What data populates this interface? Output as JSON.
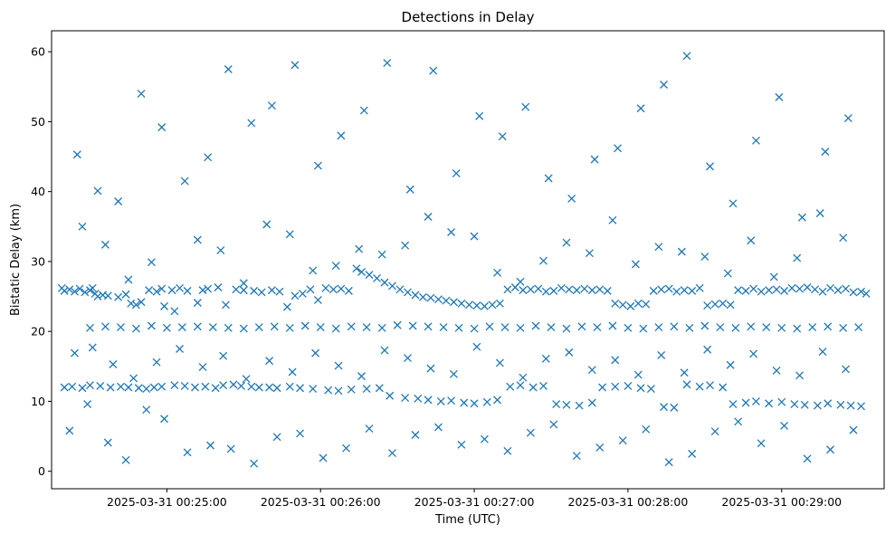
{
  "chart_data": {
    "type": "scatter",
    "title": "Detections in Delay",
    "xlabel": "Time (UTC)",
    "ylabel": "Bistatic Delay (km)",
    "marker": "x",
    "color": "#1f77b4",
    "grid": false,
    "x_ticks": [
      "2025-03-31 00:25:00",
      "2025-03-31 00:26:00",
      "2025-03-31 00:27:00",
      "2025-03-31 00:28:00",
      "2025-03-31 00:29:00"
    ],
    "y_ticks": [
      0,
      10,
      20,
      30,
      40,
      50,
      60
    ],
    "xlim": [
      "2025-03-31 00:24:15",
      "2025-03-31 00:29:40"
    ],
    "ylim": [
      -2.5,
      63
    ],
    "series": [
      {
        "x": [
          "00:24:19",
          "00:24:20",
          "00:24:22",
          "00:24:24",
          "00:24:26",
          "00:24:28",
          "00:24:30",
          "00:24:31",
          "00:24:32",
          "00:24:33",
          "00:24:35",
          "00:24:37",
          "00:24:41",
          "00:24:44",
          "00:24:46",
          "00:24:48",
          "00:24:50",
          "00:24:53",
          "00:24:56",
          "00:24:58",
          "00:24:59",
          "00:25:02",
          "00:25:05",
          "00:25:08",
          "00:25:12",
          "00:25:14",
          "00:25:16",
          "00:25:20",
          "00:25:23",
          "00:25:27",
          "00:25:30",
          "00:25:34",
          "00:25:37",
          "00:25:41",
          "00:25:44",
          "00:25:47",
          "00:25:50",
          "00:25:53",
          "00:25:56",
          "00:25:59",
          "00:26:02",
          "00:26:05",
          "00:26:08",
          "00:26:11",
          "00:26:14",
          "00:26:16",
          "00:26:19",
          "00:26:22",
          "00:26:25",
          "00:26:28",
          "00:26:31",
          "00:26:34",
          "00:26:37",
          "00:26:40",
          "00:26:43",
          "00:26:46",
          "00:26:49",
          "00:26:52",
          "00:26:55",
          "00:26:58",
          "00:27:01",
          "00:27:04",
          "00:27:07",
          "00:27:10",
          "00:27:13",
          "00:27:16",
          "00:27:19",
          "00:27:22",
          "00:27:25",
          "00:27:28",
          "00:27:31",
          "00:27:34",
          "00:27:37",
          "00:27:40",
          "00:27:43",
          "00:27:46",
          "00:27:49",
          "00:27:52",
          "00:27:55",
          "00:27:58",
          "00:28:01",
          "00:28:04",
          "00:28:07",
          "00:28:10",
          "00:28:13",
          "00:28:16",
          "00:28:19",
          "00:28:22",
          "00:28:25",
          "00:28:28",
          "00:28:31",
          "00:28:34",
          "00:28:37",
          "00:28:40",
          "00:28:43",
          "00:28:46",
          "00:28:49",
          "00:28:52",
          "00:28:55",
          "00:28:58",
          "00:29:01",
          "00:29:04",
          "00:29:07",
          "00:29:10",
          "00:29:13",
          "00:29:16",
          "00:29:19",
          "00:29:22",
          "00:29:25",
          "00:29:28",
          "00:29:31",
          "00:29:33",
          "00:24:20",
          "00:24:23",
          "00:24:27",
          "00:24:30",
          "00:24:34",
          "00:24:38",
          "00:24:42",
          "00:24:45",
          "00:24:49",
          "00:24:52",
          "00:24:55",
          "00:24:58",
          "00:25:03",
          "00:25:07",
          "00:25:11",
          "00:25:15",
          "00:25:19",
          "00:25:22",
          "00:25:26",
          "00:25:29",
          "00:25:33",
          "00:25:36",
          "00:25:40",
          "00:25:43",
          "00:25:48",
          "00:25:52",
          "00:25:57",
          "00:26:03",
          "00:26:07",
          "00:26:12",
          "00:26:18",
          "00:26:23",
          "00:26:27",
          "00:26:33",
          "00:26:38",
          "00:26:42",
          "00:26:47",
          "00:26:51",
          "00:26:56",
          "00:27:00",
          "00:27:05",
          "00:27:09",
          "00:27:14",
          "00:27:18",
          "00:27:23",
          "00:27:27",
          "00:27:32",
          "00:27:36",
          "00:27:41",
          "00:27:46",
          "00:27:50",
          "00:27:55",
          "00:28:00",
          "00:28:05",
          "00:28:09",
          "00:28:14",
          "00:28:18",
          "00:28:23",
          "00:28:28",
          "00:28:32",
          "00:28:37",
          "00:28:41",
          "00:28:46",
          "00:28:50",
          "00:28:55",
          "00:29:00",
          "00:29:05",
          "00:29:09",
          "00:29:14",
          "00:29:18",
          "00:29:23",
          "00:29:27",
          "00:29:31",
          "00:24:30",
          "00:24:36",
          "00:24:42",
          "00:24:48",
          "00:24:54",
          "00:25:00",
          "00:25:06",
          "00:25:12",
          "00:25:18",
          "00:25:24",
          "00:25:30",
          "00:25:36",
          "00:25:42",
          "00:25:48",
          "00:25:54",
          "00:26:00",
          "00:26:06",
          "00:26:12",
          "00:26:18",
          "00:26:24",
          "00:26:30",
          "00:26:36",
          "00:26:42",
          "00:26:48",
          "00:26:54",
          "00:27:00",
          "00:27:06",
          "00:27:12",
          "00:27:18",
          "00:27:24",
          "00:27:30",
          "00:27:36",
          "00:27:42",
          "00:27:48",
          "00:27:54",
          "00:28:00",
          "00:28:06",
          "00:28:12",
          "00:28:18",
          "00:28:24",
          "00:28:30",
          "00:28:36",
          "00:28:42",
          "00:28:48",
          "00:28:54",
          "00:29:00",
          "00:29:06",
          "00:29:12",
          "00:29:18",
          "00:29:24",
          "00:29:30",
          "00:24:25",
          "00:24:33",
          "00:24:41",
          "00:24:50",
          "00:24:58",
          "00:25:07",
          "00:25:16",
          "00:25:24",
          "00:25:33",
          "00:25:41",
          "00:25:50",
          "00:25:59",
          "00:26:08",
          "00:26:17",
          "00:26:26",
          "00:26:35",
          "00:26:44",
          "00:26:53",
          "00:27:02",
          "00:27:11",
          "00:27:20",
          "00:27:29",
          "00:27:38",
          "00:27:47",
          "00:27:56",
          "00:28:05",
          "00:28:14",
          "00:28:23",
          "00:28:32",
          "00:28:41",
          "00:28:50",
          "00:28:59",
          "00:29:08",
          "00:29:17",
          "00:29:26",
          "00:24:27",
          "00:24:36",
          "00:24:45",
          "00:24:54",
          "00:25:03",
          "00:25:12",
          "00:25:21",
          "00:25:30",
          "00:25:39",
          "00:25:48",
          "00:25:57",
          "00:26:06",
          "00:26:15",
          "00:26:24",
          "00:26:33",
          "00:26:42",
          "00:26:51",
          "00:27:00",
          "00:27:09",
          "00:27:18",
          "00:27:27",
          "00:27:36",
          "00:27:45",
          "00:27:54",
          "00:28:03",
          "00:28:12",
          "00:28:21",
          "00:28:30",
          "00:28:39",
          "00:28:48",
          "00:28:57",
          "00:29:06",
          "00:29:15",
          "00:29:24",
          "00:24:22",
          "00:24:29",
          "00:24:37",
          "00:24:44",
          "00:24:52",
          "00:24:59",
          "00:25:08",
          "00:25:17",
          "00:25:25",
          "00:25:34",
          "00:25:43",
          "00:25:52",
          "00:26:01",
          "00:26:10",
          "00:26:19",
          "00:26:28",
          "00:26:37",
          "00:26:46",
          "00:26:55",
          "00:27:04",
          "00:27:13",
          "00:27:22",
          "00:27:31",
          "00:27:40",
          "00:27:49",
          "00:27:58",
          "00:28:07",
          "00:28:16",
          "00:28:25",
          "00:28:34",
          "00:28:43",
          "00:28:52",
          "00:29:01",
          "00:29:10",
          "00:29:19",
          "00:29:28",
          "00:24:24",
          "00:24:31",
          "00:24:39",
          "00:24:47",
          "00:24:56",
          "00:25:05",
          "00:25:14",
          "00:25:22",
          "00:25:31",
          "00:25:40",
          "00:25:49",
          "00:25:58",
          "00:26:07",
          "00:26:16",
          "00:26:25",
          "00:26:34",
          "00:26:43",
          "00:26:52",
          "00:27:01",
          "00:27:10",
          "00:27:19",
          "00:27:28",
          "00:27:37",
          "00:27:46",
          "00:27:55",
          "00:28:04",
          "00:28:13",
          "00:28:22",
          "00:28:31",
          "00:28:40",
          "00:28:49",
          "00:28:58",
          "00:29:07",
          "00:29:16",
          "00:29:25"
        ],
        "y": [
          26.2,
          25.8,
          26.0,
          25.7,
          26.1,
          25.6,
          25.9,
          26.2,
          25.4,
          25.0,
          25.2,
          25.1,
          24.9,
          25.3,
          24.0,
          23.8,
          24.2,
          25.9,
          25.7,
          26.1,
          23.6,
          25.9,
          26.2,
          25.8,
          24.1,
          25.9,
          26.1,
          26.3,
          23.8,
          26.0,
          25.9,
          25.8,
          25.6,
          25.9,
          25.7,
          23.5,
          25.1,
          25.4,
          26.0,
          24.5,
          26.2,
          26.0,
          26.1,
          25.8,
          29.0,
          28.5,
          28.1,
          27.6,
          27.0,
          26.5,
          26.0,
          25.6,
          25.2,
          24.9,
          24.8,
          24.6,
          24.4,
          24.2,
          24.0,
          23.8,
          23.7,
          23.6,
          23.8,
          24.0,
          26.0,
          26.3,
          25.9,
          26.0,
          26.1,
          25.7,
          25.8,
          26.2,
          26.0,
          25.9,
          26.1,
          25.9,
          26.0,
          25.8,
          24.0,
          23.8,
          23.6,
          24.0,
          23.9,
          25.8,
          26.0,
          26.1,
          25.7,
          25.9,
          25.8,
          26.2,
          23.7,
          23.9,
          24.0,
          23.8,
          25.9,
          25.8,
          26.1,
          25.7,
          25.9,
          26.0,
          25.8,
          26.2,
          26.1,
          26.3,
          26.0,
          25.7,
          26.2,
          25.9,
          26.1,
          25.6,
          25.7,
          25.4,
          12.0,
          12.1,
          11.9,
          12.3,
          12.2,
          12.0,
          12.1,
          12.0,
          11.9,
          11.8,
          12.0,
          12.1,
          12.3,
          12.2,
          12.0,
          12.1,
          11.9,
          12.3,
          12.4,
          12.2,
          12.1,
          12.0,
          12.0,
          11.9,
          12.1,
          11.9,
          11.8,
          11.6,
          11.5,
          11.7,
          11.8,
          11.9,
          10.8,
          10.5,
          10.4,
          10.2,
          10.0,
          10.1,
          9.8,
          9.7,
          9.9,
          10.2,
          12.1,
          12.3,
          12.0,
          12.2,
          9.6,
          9.5,
          9.4,
          9.8,
          12.0,
          12.1,
          12.2,
          11.9,
          11.8,
          9.2,
          9.1,
          12.4,
          12.1,
          12.3,
          12.0,
          9.6,
          9.8,
          10.0,
          9.7,
          9.9,
          9.6,
          9.5,
          9.4,
          9.7,
          9.5,
          9.4,
          9.3,
          20.5,
          20.7,
          20.6,
          20.4,
          20.8,
          20.5,
          20.6,
          20.7,
          20.6,
          20.5,
          20.4,
          20.6,
          20.7,
          20.5,
          20.8,
          20.6,
          20.4,
          20.7,
          20.6,
          20.5,
          20.9,
          20.8,
          20.7,
          20.6,
          20.5,
          20.4,
          20.7,
          20.6,
          20.5,
          20.8,
          20.6,
          20.4,
          20.7,
          20.6,
          20.8,
          20.5,
          20.4,
          20.6,
          20.7,
          20.5,
          20.8,
          20.6,
          20.5,
          20.7,
          20.6,
          20.5,
          20.4,
          20.6,
          20.7,
          20.5,
          20.6,
          45.3,
          40.1,
          38.6,
          54.0,
          49.2,
          41.5,
          44.9,
          57.5,
          49.8,
          52.3,
          58.1,
          43.7,
          48.0,
          51.6,
          58.4,
          40.3,
          57.3,
          42.6,
          50.8,
          47.9,
          52.1,
          41.9,
          39.0,
          44.6,
          46.2,
          51.9,
          55.3,
          59.4,
          43.6,
          38.3,
          47.3,
          53.5,
          36.3,
          45.7,
          50.5,
          35.0,
          32.4,
          27.4,
          29.9,
          22.9,
          33.1,
          31.6,
          26.9,
          35.3,
          33.9,
          28.7,
          29.4,
          31.8,
          31.0,
          32.3,
          36.4,
          34.2,
          33.6,
          28.4,
          27.1,
          30.1,
          32.7,
          31.2,
          35.9,
          29.6,
          32.1,
          31.4,
          30.7,
          28.3,
          33.0,
          27.8,
          30.5,
          36.9,
          33.4,
          5.8,
          9.6,
          4.1,
          1.6,
          8.8,
          7.5,
          2.7,
          3.7,
          3.2,
          1.1,
          4.9,
          5.4,
          1.9,
          3.3,
          6.1,
          2.6,
          5.2,
          6.3,
          3.8,
          4.6,
          2.9,
          5.5,
          6.7,
          2.2,
          3.4,
          4.4,
          6.0,
          1.3,
          2.5,
          5.7,
          7.1,
          4.0,
          6.5,
          1.8,
          3.1,
          5.9,
          16.9,
          17.7,
          15.3,
          13.3,
          15.6,
          17.5,
          14.9,
          16.5,
          13.2,
          15.8,
          14.2,
          16.9,
          15.1,
          13.6,
          17.3,
          16.2,
          14.7,
          13.9,
          17.8,
          15.5,
          13.4,
          16.1,
          17.0,
          14.5,
          15.9,
          13.8,
          16.6,
          14.1,
          17.4,
          15.2,
          16.8,
          14.4,
          13.7,
          17.1,
          14.6
        ]
      }
    ]
  }
}
